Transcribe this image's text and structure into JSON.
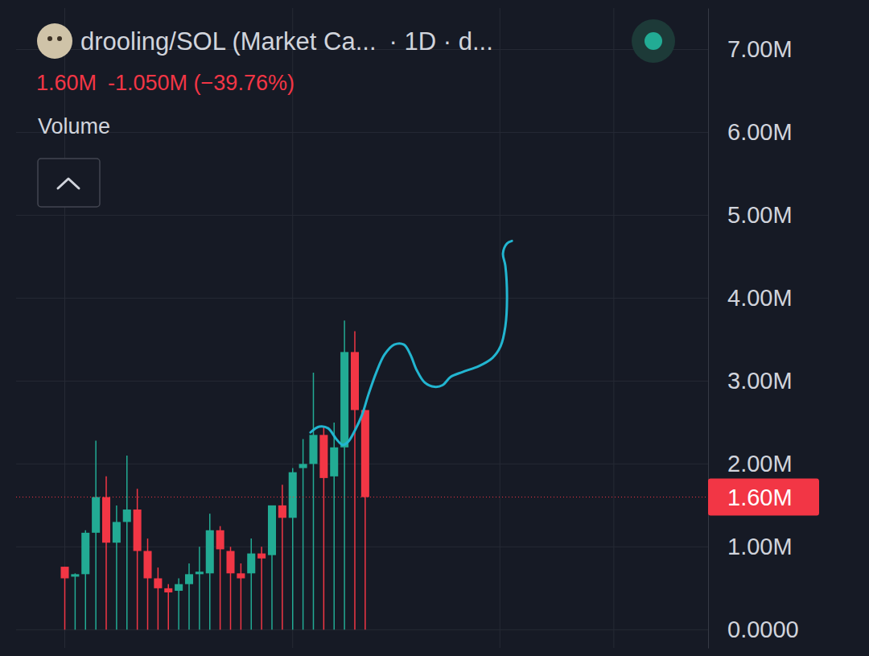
{
  "chart_data": {
    "type": "candlestick",
    "title": "drooling/SOL (Market Ca...",
    "subtitle": "· 1D · d...",
    "annotations": [
      "1.60M",
      "-1.050M (−39.76%)",
      "Volume"
    ],
    "tick_labels": "y",
    "grid": true,
    "x": [
      0,
      1,
      2,
      3,
      4,
      5,
      6,
      7,
      8,
      9,
      10,
      11,
      12,
      13,
      14,
      15,
      16,
      17,
      18,
      19,
      20,
      21,
      22,
      23,
      24,
      25,
      26,
      27,
      28,
      29
    ],
    "xlim": [
      -4.7,
      62.1
    ],
    "xticks": [
      0,
      22,
      42,
      53
    ],
    "ylim": [
      -0.22,
      7.5
    ],
    "yticks": [
      {
        "value": 0,
        "label": "0.0000"
      },
      {
        "value": 1,
        "label": "1.00M"
      },
      {
        "value": 2,
        "label": "2.00M"
      },
      {
        "value": 3,
        "label": "3.00M"
      },
      {
        "value": 4,
        "label": "4.00M"
      },
      {
        "value": 5,
        "label": "5.00M"
      },
      {
        "value": 6,
        "label": "6.00M"
      },
      {
        "value": 7,
        "label": "7.00M"
      }
    ],
    "price_line": {
      "value": 1.6,
      "label": "1.60M",
      "color": "#f23645"
    },
    "series": [
      {
        "type": "candlestick",
        "open": [
          0.76,
          0.64,
          0.67,
          1.17,
          1.6,
          1.05,
          1.3,
          1.45,
          0.95,
          0.62,
          0.5,
          0.47,
          0.55,
          0.67,
          0.68,
          1.2,
          0.95,
          0.68,
          0.68,
          0.92,
          0.9,
          1.5,
          1.35,
          1.95,
          2.0,
          2.35,
          1.85,
          2.2,
          3.35,
          2.65
        ],
        "high": [
          0.76,
          0.68,
          1.2,
          2.28,
          1.85,
          1.5,
          2.1,
          1.7,
          1.1,
          0.75,
          0.55,
          0.62,
          0.8,
          1.0,
          1.4,
          1.25,
          1.0,
          0.8,
          1.1,
          1.0,
          1.5,
          1.75,
          1.95,
          2.3,
          3.1,
          2.45,
          2.5,
          3.73,
          3.6,
          2.65
        ],
        "low": [
          0,
          0,
          0,
          0,
          0,
          0,
          0,
          0,
          0,
          0,
          0,
          0,
          0,
          0,
          0,
          0,
          0,
          0,
          0,
          0,
          0,
          0,
          0,
          0,
          0,
          0,
          0,
          0,
          0,
          0
        ],
        "close": [
          0.62,
          0.67,
          1.17,
          1.6,
          1.05,
          1.3,
          1.45,
          0.95,
          0.62,
          0.5,
          0.45,
          0.55,
          0.67,
          0.7,
          1.2,
          0.97,
          0.68,
          0.62,
          0.92,
          0.86,
          1.5,
          1.35,
          1.9,
          2.0,
          2.35,
          1.83,
          2.2,
          3.35,
          2.65,
          1.6
        ]
      },
      {
        "type": "line",
        "color": "#22b5d0",
        "x": [
          23.72,
          24.57,
          25.43,
          26.21,
          26.83,
          27.37,
          27.99,
          28.69,
          29.32,
          30.09,
          30.87,
          31.8,
          32.74,
          33.36,
          33.98,
          34.76,
          35.69,
          36.47,
          37.25,
          38.41,
          39.97,
          41.29,
          42.07,
          42.53,
          42.69,
          42.53,
          42.3,
          42.69,
          43.16
        ],
        "values": [
          2.38,
          2.45,
          2.43,
          2.3,
          2.23,
          2.27,
          2.4,
          2.59,
          2.84,
          3.11,
          3.32,
          3.44,
          3.44,
          3.32,
          3.13,
          2.98,
          2.93,
          2.95,
          3.05,
          3.11,
          3.18,
          3.28,
          3.42,
          3.66,
          4.0,
          4.39,
          4.54,
          4.66,
          4.69
        ]
      }
    ]
  }
}
